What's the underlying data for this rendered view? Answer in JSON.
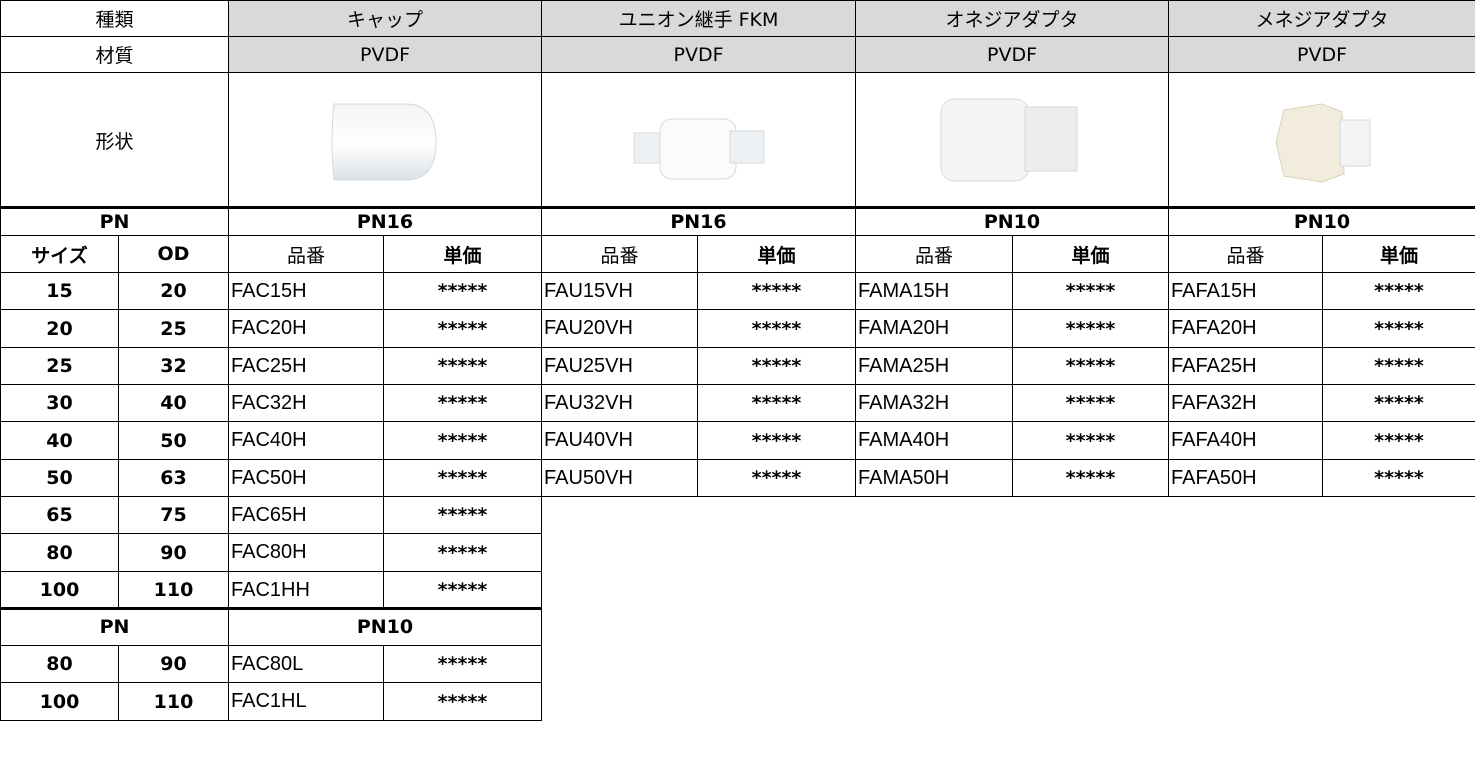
{
  "header": {
    "type_label": "種類",
    "material_label": "材質",
    "shape_label": "形状"
  },
  "products": [
    {
      "name": "キャップ",
      "material": "PVDF"
    },
    {
      "name": "ユニオン継手 FKM",
      "material": "PVDF"
    },
    {
      "name": "オネジアダプタ",
      "material": "PVDF"
    },
    {
      "name": "メネジアダプタ",
      "material": "PVDF"
    }
  ],
  "sections": [
    {
      "pn_label": "PN",
      "pns": [
        "PN16",
        "PN16",
        "PN10",
        "PN10"
      ],
      "size_label": "サイズ",
      "od_label": "OD",
      "code_labels": [
        "品番",
        "品番",
        "品番",
        "品番"
      ],
      "price_labels": [
        "単価",
        "単価",
        "単価",
        "単価"
      ],
      "rows": [
        {
          "size": 15,
          "od": 20,
          "items": [
            {
              "code": "FAC15H",
              "price": "*****"
            },
            {
              "code": "FAU15VH",
              "price": "*****"
            },
            {
              "code": "FAMA15H",
              "price": "*****"
            },
            {
              "code": "FAFA15H",
              "price": "*****"
            }
          ]
        },
        {
          "size": 20,
          "od": 25,
          "items": [
            {
              "code": "FAC20H",
              "price": "*****"
            },
            {
              "code": "FAU20VH",
              "price": "*****"
            },
            {
              "code": "FAMA20H",
              "price": "*****"
            },
            {
              "code": "FAFA20H",
              "price": "*****"
            }
          ]
        },
        {
          "size": 25,
          "od": 32,
          "items": [
            {
              "code": "FAC25H",
              "price": "*****"
            },
            {
              "code": "FAU25VH",
              "price": "*****"
            },
            {
              "code": "FAMA25H",
              "price": "*****"
            },
            {
              "code": "FAFA25H",
              "price": "*****"
            }
          ]
        },
        {
          "size": 30,
          "od": 40,
          "items": [
            {
              "code": "FAC32H",
              "price": "*****"
            },
            {
              "code": "FAU32VH",
              "price": "*****"
            },
            {
              "code": "FAMA32H",
              "price": "*****"
            },
            {
              "code": "FAFA32H",
              "price": "*****"
            }
          ]
        },
        {
          "size": 40,
          "od": 50,
          "items": [
            {
              "code": "FAC40H",
              "price": "*****"
            },
            {
              "code": "FAU40VH",
              "price": "*****"
            },
            {
              "code": "FAMA40H",
              "price": "*****"
            },
            {
              "code": "FAFA40H",
              "price": "*****"
            }
          ]
        },
        {
          "size": 50,
          "od": 63,
          "items": [
            {
              "code": "FAC50H",
              "price": "*****"
            },
            {
              "code": "FAU50VH",
              "price": "*****"
            },
            {
              "code": "FAMA50H",
              "price": "*****"
            },
            {
              "code": "FAFA50H",
              "price": "*****"
            }
          ]
        },
        {
          "size": 65,
          "od": 75,
          "items": [
            {
              "code": "FAC65H",
              "price": "*****"
            }
          ]
        },
        {
          "size": 80,
          "od": 90,
          "items": [
            {
              "code": "FAC80H",
              "price": "*****"
            }
          ]
        },
        {
          "size": 100,
          "od": 110,
          "items": [
            {
              "code": "FAC1HH",
              "price": "*****"
            }
          ]
        }
      ]
    },
    {
      "pn_label": "PN",
      "pns": [
        "PN10"
      ],
      "rows": [
        {
          "size": 80,
          "od": 90,
          "items": [
            {
              "code": "FAC80L",
              "price": "*****"
            }
          ]
        },
        {
          "size": 100,
          "od": 110,
          "items": [
            {
              "code": "FAC1HL",
              "price": "*****"
            }
          ]
        }
      ]
    }
  ]
}
